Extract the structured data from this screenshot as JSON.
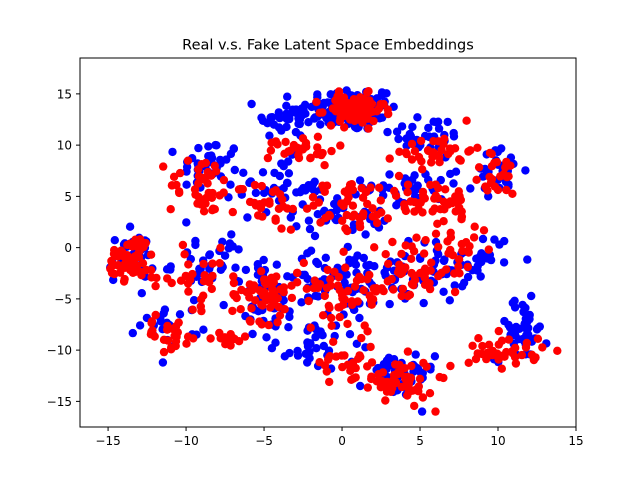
{
  "chart_data": {
    "type": "scatter",
    "title": "Real v.s. Fake Latent Space Embeddings",
    "xlabel": "",
    "ylabel": "",
    "xlim": [
      -16.8,
      15
    ],
    "ylim": [
      -17.5,
      18.5
    ],
    "x_ticks": [
      -15,
      -10,
      -5,
      0,
      5,
      10,
      15
    ],
    "y_ticks": [
      -15,
      -10,
      -5,
      0,
      5,
      10,
      15
    ],
    "grid": false,
    "legend": "none",
    "series": [
      {
        "color": "#0000ff",
        "clusters": [
          {
            "cx": 0.5,
            "cy": 13.5,
            "sx": 2.6,
            "sy": 1.8,
            "n": 110
          },
          {
            "cx": -3.5,
            "cy": 12.5,
            "sx": 1.8,
            "sy": 1.5,
            "n": 35
          },
          {
            "cx": 5.5,
            "cy": 11.0,
            "sx": 2.0,
            "sy": 1.5,
            "n": 30
          },
          {
            "cx": -8.5,
            "cy": 8.0,
            "sx": 1.6,
            "sy": 2.2,
            "n": 35
          },
          {
            "cx": -4.0,
            "cy": 6.0,
            "sx": 2.2,
            "sy": 2.2,
            "n": 40
          },
          {
            "cx": 4.5,
            "cy": 6.0,
            "sx": 2.6,
            "sy": 2.0,
            "n": 40
          },
          {
            "cx": 10.0,
            "cy": 7.5,
            "sx": 1.4,
            "sy": 1.8,
            "n": 25
          },
          {
            "cx": 0.0,
            "cy": 3.5,
            "sx": 2.6,
            "sy": 2.0,
            "n": 40
          },
          {
            "cx": -13.5,
            "cy": -1.0,
            "sx": 1.2,
            "sy": 2.0,
            "n": 40
          },
          {
            "cx": -8.5,
            "cy": -1.5,
            "sx": 2.0,
            "sy": 2.6,
            "n": 35
          },
          {
            "cx": -4.5,
            "cy": -4.5,
            "sx": 2.2,
            "sy": 2.6,
            "n": 55
          },
          {
            "cx": 0.5,
            "cy": -3.5,
            "sx": 2.5,
            "sy": 3.0,
            "n": 60
          },
          {
            "cx": 5.0,
            "cy": -2.5,
            "sx": 2.4,
            "sy": 2.5,
            "n": 45
          },
          {
            "cx": 9.0,
            "cy": -1.0,
            "sx": 1.6,
            "sy": 2.0,
            "n": 25
          },
          {
            "cx": -11.0,
            "cy": -7.5,
            "sx": 1.6,
            "sy": 1.6,
            "n": 20
          },
          {
            "cx": -2.0,
            "cy": -9.5,
            "sx": 2.0,
            "sy": 2.0,
            "n": 35
          },
          {
            "cx": 3.5,
            "cy": -12.5,
            "sx": 2.0,
            "sy": 2.0,
            "n": 45
          },
          {
            "cx": 11.5,
            "cy": -8.0,
            "sx": 1.4,
            "sy": 2.5,
            "n": 45
          }
        ]
      },
      {
        "color": "#ff0000",
        "clusters": [
          {
            "cx": 0.8,
            "cy": 13.5,
            "sx": 1.6,
            "sy": 1.2,
            "n": 95
          },
          {
            "cx": -2.5,
            "cy": 9.5,
            "sx": 1.8,
            "sy": 1.2,
            "n": 30
          },
          {
            "cx": 6.0,
            "cy": 9.5,
            "sx": 2.0,
            "sy": 1.4,
            "n": 35
          },
          {
            "cx": -9.0,
            "cy": 6.0,
            "sx": 1.8,
            "sy": 2.4,
            "n": 40
          },
          {
            "cx": -5.0,
            "cy": 4.0,
            "sx": 2.0,
            "sy": 2.0,
            "n": 30
          },
          {
            "cx": 5.5,
            "cy": 4.5,
            "sx": 2.6,
            "sy": 2.0,
            "n": 45
          },
          {
            "cx": 10.0,
            "cy": 7.0,
            "sx": 1.4,
            "sy": 1.8,
            "n": 25
          },
          {
            "cx": 0.5,
            "cy": 4.0,
            "sx": 2.5,
            "sy": 2.2,
            "n": 45
          },
          {
            "cx": -13.5,
            "cy": -1.0,
            "sx": 1.3,
            "sy": 1.8,
            "n": 55
          },
          {
            "cx": -9.5,
            "cy": -3.0,
            "sx": 2.0,
            "sy": 2.5,
            "n": 30
          },
          {
            "cx": -5.0,
            "cy": -4.5,
            "sx": 1.8,
            "sy": 2.2,
            "n": 60
          },
          {
            "cx": 0.5,
            "cy": -4.0,
            "sx": 2.4,
            "sy": 2.6,
            "n": 60
          },
          {
            "cx": 4.5,
            "cy": -2.5,
            "sx": 2.0,
            "sy": 2.4,
            "n": 50
          },
          {
            "cx": 7.5,
            "cy": 0.0,
            "sx": 1.6,
            "sy": 2.0,
            "n": 25
          },
          {
            "cx": -11.0,
            "cy": -8.5,
            "sx": 1.6,
            "sy": 1.2,
            "n": 25
          },
          {
            "cx": -7.5,
            "cy": -9.0,
            "sx": 1.2,
            "sy": 0.8,
            "n": 15
          },
          {
            "cx": 0.5,
            "cy": -11.0,
            "sx": 1.6,
            "sy": 2.0,
            "n": 25
          },
          {
            "cx": 3.5,
            "cy": -13.0,
            "sx": 2.0,
            "sy": 1.8,
            "n": 55
          },
          {
            "cx": 10.5,
            "cy": -10.0,
            "sx": 2.0,
            "sy": 1.4,
            "n": 40
          }
        ]
      }
    ]
  }
}
